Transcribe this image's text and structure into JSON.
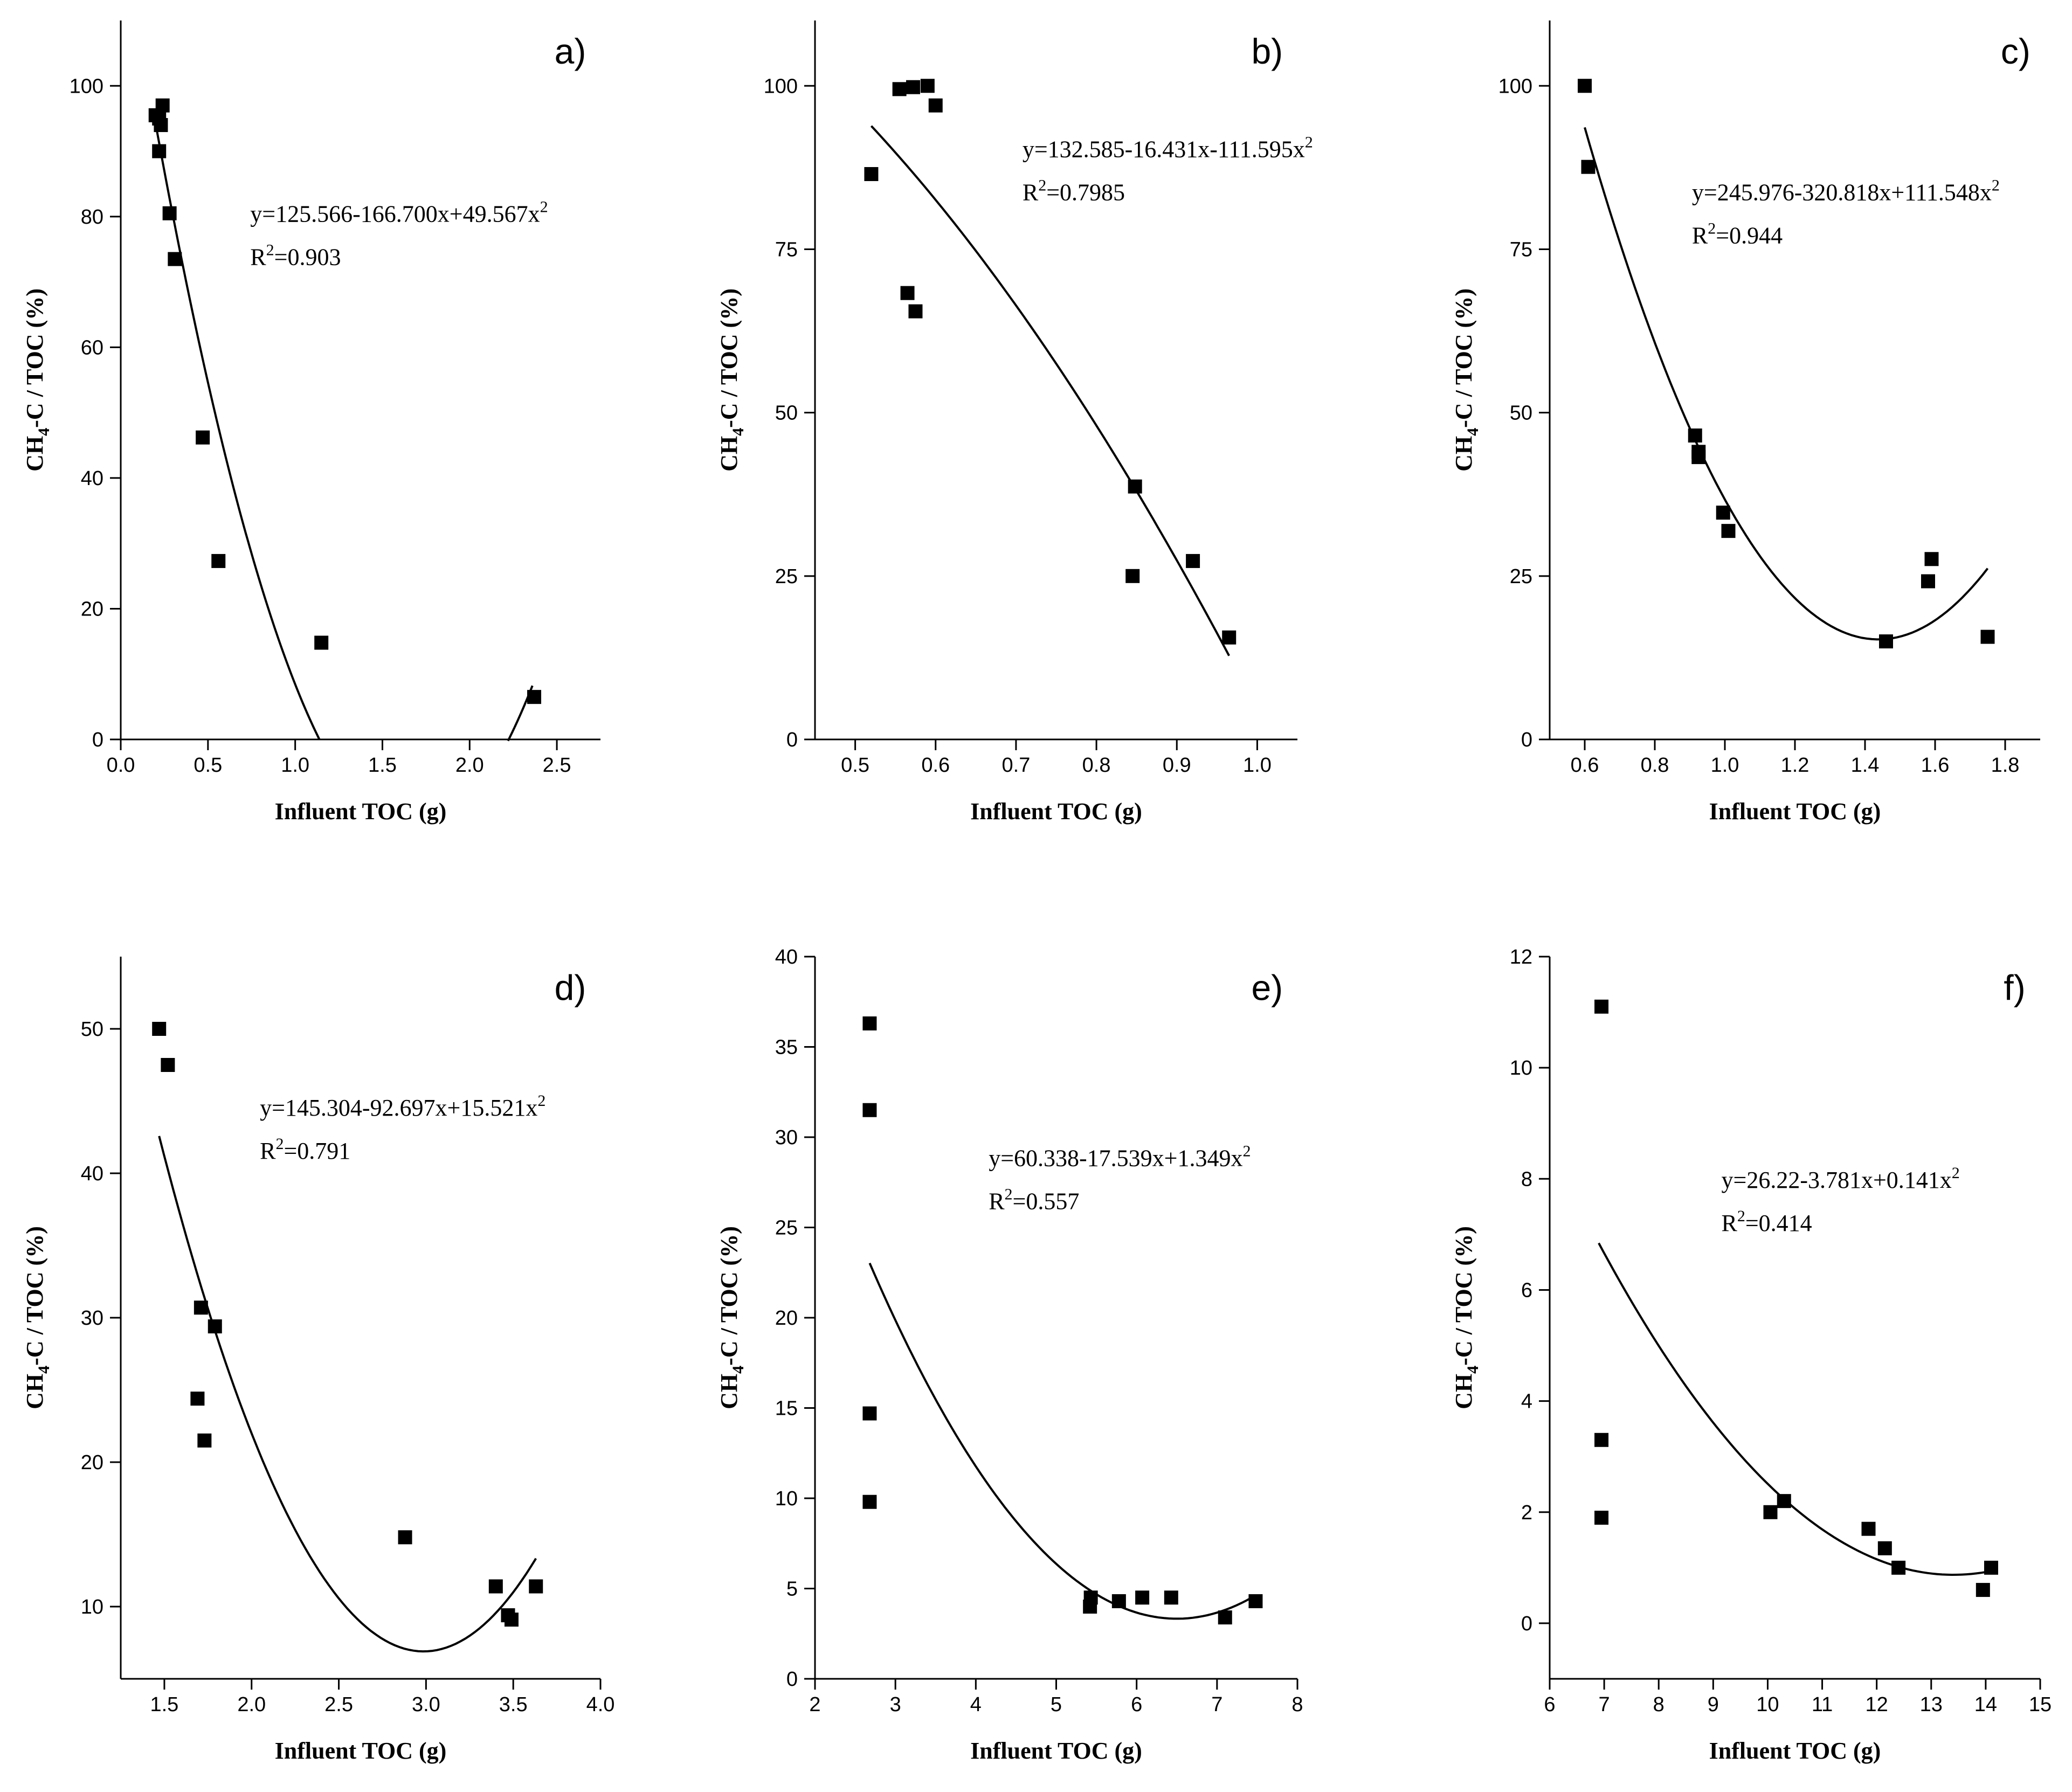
{
  "figure": {
    "colors": {
      "marker": "#000000",
      "fit_line": "#000000",
      "axes": "#000000",
      "background": "#ffffff"
    }
  },
  "chart_data": [
    {
      "type": "scatter",
      "panel_label": "a)",
      "xlabel": "Influent TOC (g)",
      "ylabel": "CH4-C / TOC (%)",
      "ylabel_parts": {
        "main": "CH",
        "sub": "4",
        "rest": "-C / TOC (%)"
      },
      "xlim": [
        0.0,
        2.75
      ],
      "ylim": [
        0,
        110
      ],
      "xticks": [
        0.0,
        0.5,
        1.0,
        1.5,
        2.0,
        2.5
      ],
      "xtick_labels": [
        "0.0",
        "0.5",
        "1.0",
        "1.5",
        "2.0",
        "2.5"
      ],
      "yticks": [
        0,
        20,
        40,
        60,
        80,
        100
      ],
      "ytick_labels": [
        "0",
        "20",
        "40",
        "60",
        "80",
        "100"
      ],
      "equation": {
        "text": "y=125.566-166.700x+49.567x",
        "sup": "2"
      },
      "r2": {
        "prefix": "R",
        "sup": "2",
        "value": "=0.903"
      },
      "fit": {
        "a": 125.566,
        "b": -166.7,
        "c": 49.567,
        "x_ranges": [
          [
            0.2,
            1.14
          ],
          [
            2.22,
            2.36
          ]
        ]
      },
      "points": [
        {
          "x": 0.2,
          "y": 95.5
        },
        {
          "x": 0.22,
          "y": 95
        },
        {
          "x": 0.22,
          "y": 90
        },
        {
          "x": 0.23,
          "y": 94
        },
        {
          "x": 0.24,
          "y": 97
        },
        {
          "x": 0.28,
          "y": 80.5
        },
        {
          "x": 0.31,
          "y": 73.5
        },
        {
          "x": 0.47,
          "y": 46.2
        },
        {
          "x": 0.56,
          "y": 27.3
        },
        {
          "x": 1.15,
          "y": 14.8
        },
        {
          "x": 2.37,
          "y": 6.5
        }
      ]
    },
    {
      "type": "scatter",
      "panel_label": "b)",
      "xlabel": "Influent TOC (g)",
      "ylabel": "CH4-C / TOC (%)",
      "ylabel_parts": {
        "main": "CH",
        "sub": "4",
        "rest": "-C / TOC (%)"
      },
      "xlim": [
        0.45,
        1.05
      ],
      "ylim": [
        0,
        110
      ],
      "xticks": [
        0.5,
        0.6,
        0.7,
        0.8,
        0.9,
        1.0
      ],
      "xtick_labels": [
        "0.5",
        "0.6",
        "0.7",
        "0.8",
        "0.9",
        "1.0"
      ],
      "yticks": [
        0,
        25,
        50,
        75,
        100
      ],
      "ytick_labels": [
        "0",
        "25",
        "50",
        "75",
        "100"
      ],
      "equation": {
        "text": "y=132.585-16.431x-111.595x",
        "sup": "2"
      },
      "r2": {
        "prefix": "R",
        "sup": "2",
        "value": "=0.7985"
      },
      "fit": {
        "a": 132.585,
        "b": -16.431,
        "c": -111.595,
        "x_ranges": [
          [
            0.52,
            0.965
          ]
        ]
      },
      "points": [
        {
          "x": 0.52,
          "y": 86.5
        },
        {
          "x": 0.555,
          "y": 99.5
        },
        {
          "x": 0.565,
          "y": 68.3
        },
        {
          "x": 0.572,
          "y": 99.8
        },
        {
          "x": 0.575,
          "y": 65.5
        },
        {
          "x": 0.59,
          "y": 100
        },
        {
          "x": 0.6,
          "y": 97
        },
        {
          "x": 0.845,
          "y": 25
        },
        {
          "x": 0.848,
          "y": 38.7
        },
        {
          "x": 0.92,
          "y": 27.3
        },
        {
          "x": 0.965,
          "y": 15.6
        }
      ]
    },
    {
      "type": "scatter",
      "panel_label": "c)",
      "xlabel": "Influent TOC (g)",
      "ylabel": "CH4-C / TOC (%)",
      "ylabel_parts": {
        "main": "CH",
        "sub": "4",
        "rest": "-C / TOC (%)"
      },
      "xlim": [
        0.5,
        1.9
      ],
      "ylim": [
        0,
        110
      ],
      "xticks": [
        0.6,
        0.8,
        1.0,
        1.2,
        1.4,
        1.6,
        1.8
      ],
      "xtick_labels": [
        "0.6",
        "0.8",
        "1.0",
        "1.2",
        "1.4",
        "1.6",
        "1.8"
      ],
      "yticks": [
        0,
        25,
        50,
        75,
        100
      ],
      "ytick_labels": [
        "0",
        "25",
        "50",
        "75",
        "100"
      ],
      "equation": {
        "text": "y=245.976-320.818x+111.548x",
        "sup": "2"
      },
      "r2": {
        "prefix": "R",
        "sup": "2",
        "value": "=0.944"
      },
      "fit": {
        "a": 245.976,
        "b": -320.818,
        "c": 111.548,
        "x_ranges": [
          [
            0.6,
            1.75
          ]
        ]
      },
      "points": [
        {
          "x": 0.6,
          "y": 100
        },
        {
          "x": 0.61,
          "y": 87.6
        },
        {
          "x": 0.915,
          "y": 46.5
        },
        {
          "x": 0.925,
          "y": 43.2
        },
        {
          "x": 0.925,
          "y": 44
        },
        {
          "x": 0.995,
          "y": 34.7
        },
        {
          "x": 1.01,
          "y": 31.9
        },
        {
          "x": 1.46,
          "y": 15
        },
        {
          "x": 1.58,
          "y": 24.2
        },
        {
          "x": 1.59,
          "y": 27.6
        },
        {
          "x": 1.75,
          "y": 15.7
        }
      ]
    },
    {
      "type": "scatter",
      "panel_label": "d)",
      "xlabel": "Influent TOC (g)",
      "ylabel": "CH4-C / TOC (%)",
      "ylabel_parts": {
        "main": "CH",
        "sub": "4",
        "rest": "-C / TOC (%)"
      },
      "xlim": [
        1.25,
        4.0
      ],
      "ylim": [
        5,
        55
      ],
      "xticks": [
        1.5,
        2.0,
        2.5,
        3.0,
        3.5,
        4.0
      ],
      "xtick_labels": [
        "1.5",
        "2.0",
        "2.5",
        "3.0",
        "3.5",
        "4.0"
      ],
      "yticks": [
        10,
        20,
        30,
        40,
        50
      ],
      "ytick_labels": [
        "10",
        "20",
        "30",
        "40",
        "50"
      ],
      "equation": {
        "text": "y=145.304-92.697x+15.521x",
        "sup": "2"
      },
      "r2": {
        "prefix": "R",
        "sup": "2",
        "value": "=0.791"
      },
      "fit": {
        "a": 145.304,
        "b": -92.697,
        "c": 15.521,
        "x_ranges": [
          [
            1.47,
            3.63
          ]
        ]
      },
      "points": [
        {
          "x": 1.47,
          "y": 50
        },
        {
          "x": 1.52,
          "y": 47.5
        },
        {
          "x": 1.69,
          "y": 24.4
        },
        {
          "x": 1.71,
          "y": 30.7
        },
        {
          "x": 1.73,
          "y": 21.5
        },
        {
          "x": 1.79,
          "y": 29.4
        },
        {
          "x": 2.88,
          "y": 14.8
        },
        {
          "x": 3.4,
          "y": 11.4
        },
        {
          "x": 3.47,
          "y": 9.4
        },
        {
          "x": 3.49,
          "y": 9.1
        },
        {
          "x": 3.63,
          "y": 11.4
        }
      ]
    },
    {
      "type": "scatter",
      "panel_label": "e)",
      "xlabel": "Influent TOC (g)",
      "ylabel": "CH4-C / TOC (%)",
      "ylabel_parts": {
        "main": "CH",
        "sub": "4",
        "rest": "-C / TOC (%)"
      },
      "xlim": [
        2,
        8
      ],
      "ylim": [
        0,
        40
      ],
      "xticks": [
        2,
        3,
        4,
        5,
        6,
        7,
        8
      ],
      "xtick_labels": [
        "2",
        "3",
        "4",
        "5",
        "6",
        "7",
        "8"
      ],
      "yticks": [
        0,
        5,
        10,
        15,
        20,
        25,
        30,
        35,
        40
      ],
      "ytick_labels": [
        "0",
        "5",
        "10",
        "15",
        "20",
        "25",
        "30",
        "35",
        "40"
      ],
      "equation": {
        "text": "y=60.338-17.539x+1.349x",
        "sup": "2"
      },
      "r2": {
        "prefix": "R",
        "sup": "2",
        "value": "=0.557"
      },
      "fit": {
        "a": 60.338,
        "b": -17.539,
        "c": 1.349,
        "x_ranges": [
          [
            2.68,
            7.48
          ]
        ]
      },
      "points": [
        {
          "x": 2.68,
          "y": 36.3
        },
        {
          "x": 2.68,
          "y": 31.5
        },
        {
          "x": 2.68,
          "y": 14.7
        },
        {
          "x": 2.68,
          "y": 9.8
        },
        {
          "x": 5.42,
          "y": 4
        },
        {
          "x": 5.43,
          "y": 4.5
        },
        {
          "x": 5.78,
          "y": 4.3
        },
        {
          "x": 6.07,
          "y": 4.5
        },
        {
          "x": 6.43,
          "y": 4.5
        },
        {
          "x": 7.1,
          "y": 3.4
        },
        {
          "x": 7.48,
          "y": 4.3
        }
      ]
    },
    {
      "type": "scatter",
      "panel_label": "f)",
      "xlabel": "Influent TOC (g)",
      "ylabel": "CH4-C / TOC (%)",
      "ylabel_parts": {
        "main": "CH",
        "sub": "4",
        "rest": "-C / TOC (%)"
      },
      "xlim": [
        6,
        15
      ],
      "ylim": [
        -1,
        12
      ],
      "xticks": [
        6,
        7,
        8,
        9,
        10,
        11,
        12,
        13,
        14,
        15
      ],
      "xtick_labels": [
        "6",
        "7",
        "8",
        "9",
        "10",
        "11",
        "12",
        "13",
        "14",
        "15"
      ],
      "yticks": [
        0,
        2,
        4,
        6,
        8,
        10,
        12
      ],
      "ytick_labels": [
        "0",
        "2",
        "4",
        "6",
        "8",
        "10",
        "12"
      ],
      "equation": {
        "text": "y=26.22-3.781x+0.141x",
        "sup": "2"
      },
      "r2": {
        "prefix": "R",
        "sup": "2",
        "value": "=0.414"
      },
      "fit": {
        "a": 26.22,
        "b": -3.781,
        "c": 0.141,
        "x_ranges": [
          [
            6.9,
            14.1
          ]
        ]
      },
      "points": [
        {
          "x": 6.95,
          "y": 11.1
        },
        {
          "x": 6.95,
          "y": 3.3
        },
        {
          "x": 6.95,
          "y": 1.9
        },
        {
          "x": 10.05,
          "y": 2
        },
        {
          "x": 10.3,
          "y": 2.2
        },
        {
          "x": 11.85,
          "y": 1.7
        },
        {
          "x": 12.15,
          "y": 1.35
        },
        {
          "x": 12.4,
          "y": 1
        },
        {
          "x": 13.95,
          "y": 0.6
        },
        {
          "x": 14.1,
          "y": 1
        }
      ]
    }
  ]
}
